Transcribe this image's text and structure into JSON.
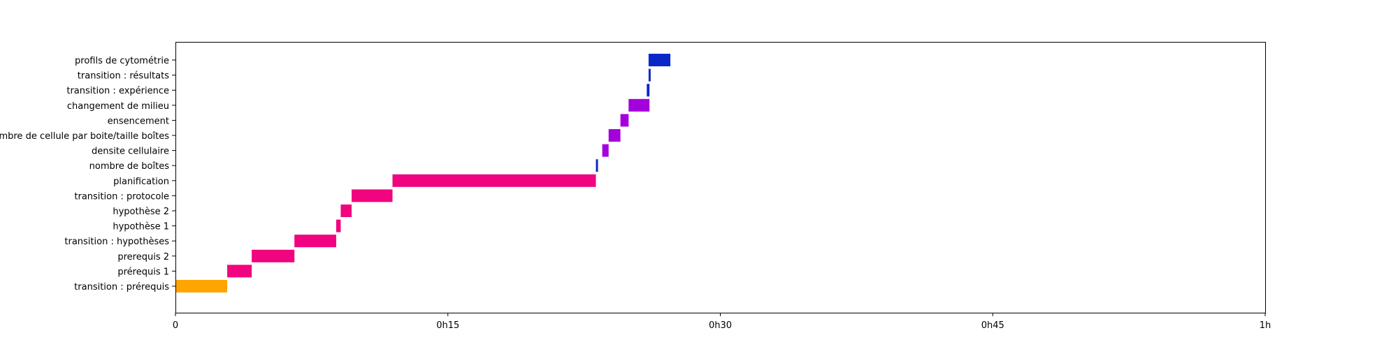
{
  "chart_data": {
    "type": "bar",
    "orientation": "horizontal",
    "x_unit": "minutes",
    "xlim": [
      0,
      60
    ],
    "grid": false,
    "x_ticks": [
      {
        "value": 0,
        "label": "0"
      },
      {
        "value": 15,
        "label": "0h15"
      },
      {
        "value": 30,
        "label": "0h30"
      },
      {
        "value": 45,
        "label": "0h45"
      },
      {
        "value": 60,
        "label": "1h"
      }
    ],
    "categories": [
      "transition : prérequis",
      "prérequis 1",
      "prerequis 2",
      "transition : hypothèses",
      "hypothèse 1",
      "hypothèse 2",
      "transition : protocole",
      "planification",
      "nombre de boîtes",
      "densite cellulaire",
      "nombre de cellule par boite/taille boîtes",
      "ensencement",
      "changement de milieu",
      "transition : expérience",
      "transition : résultats",
      "profils de cytométrie"
    ],
    "tasks": [
      {
        "category": "transition : prérequis",
        "start": 0.0,
        "end": 2.85,
        "color": "#ffa500"
      },
      {
        "category": "prérequis 1",
        "start": 2.85,
        "end": 4.2,
        "color": "#f0047f"
      },
      {
        "category": "prerequis 2",
        "start": 4.2,
        "end": 6.55,
        "color": "#f0047f"
      },
      {
        "category": "transition : hypothèses",
        "start": 6.55,
        "end": 8.85,
        "color": "#f0047f"
      },
      {
        "category": "hypothèse 1",
        "start": 8.85,
        "end": 9.1,
        "color": "#f0047f"
      },
      {
        "category": "hypothèse 2",
        "start": 9.1,
        "end": 9.7,
        "color": "#f0047f"
      },
      {
        "category": "transition : protocole",
        "start": 9.7,
        "end": 11.95,
        "color": "#f0047f"
      },
      {
        "category": "planification",
        "start": 11.95,
        "end": 23.15,
        "color": "#f0047f"
      },
      {
        "category": "nombre de boîtes",
        "start": 23.15,
        "end": 23.25,
        "color": "#0a28c8"
      },
      {
        "category": "densite cellulaire",
        "start": 23.5,
        "end": 23.85,
        "color": "#a400dc"
      },
      {
        "category": "nombre de cellule par boite/taille boîtes",
        "start": 23.85,
        "end": 24.5,
        "color": "#a400dc"
      },
      {
        "category": "ensencement",
        "start": 24.5,
        "end": 24.95,
        "color": "#a400dc"
      },
      {
        "category": "changement de milieu",
        "start": 24.95,
        "end": 26.1,
        "color": "#a400dc"
      },
      {
        "category": "transition : expérience",
        "start": 25.95,
        "end": 26.1,
        "color": "#0a28c8"
      },
      {
        "category": "transition : résultats",
        "start": 26.05,
        "end": 26.05,
        "color": "#0a28c8"
      },
      {
        "category": "profils de cytométrie",
        "start": 26.05,
        "end": 27.25,
        "color": "#0a28c8"
      }
    ]
  }
}
